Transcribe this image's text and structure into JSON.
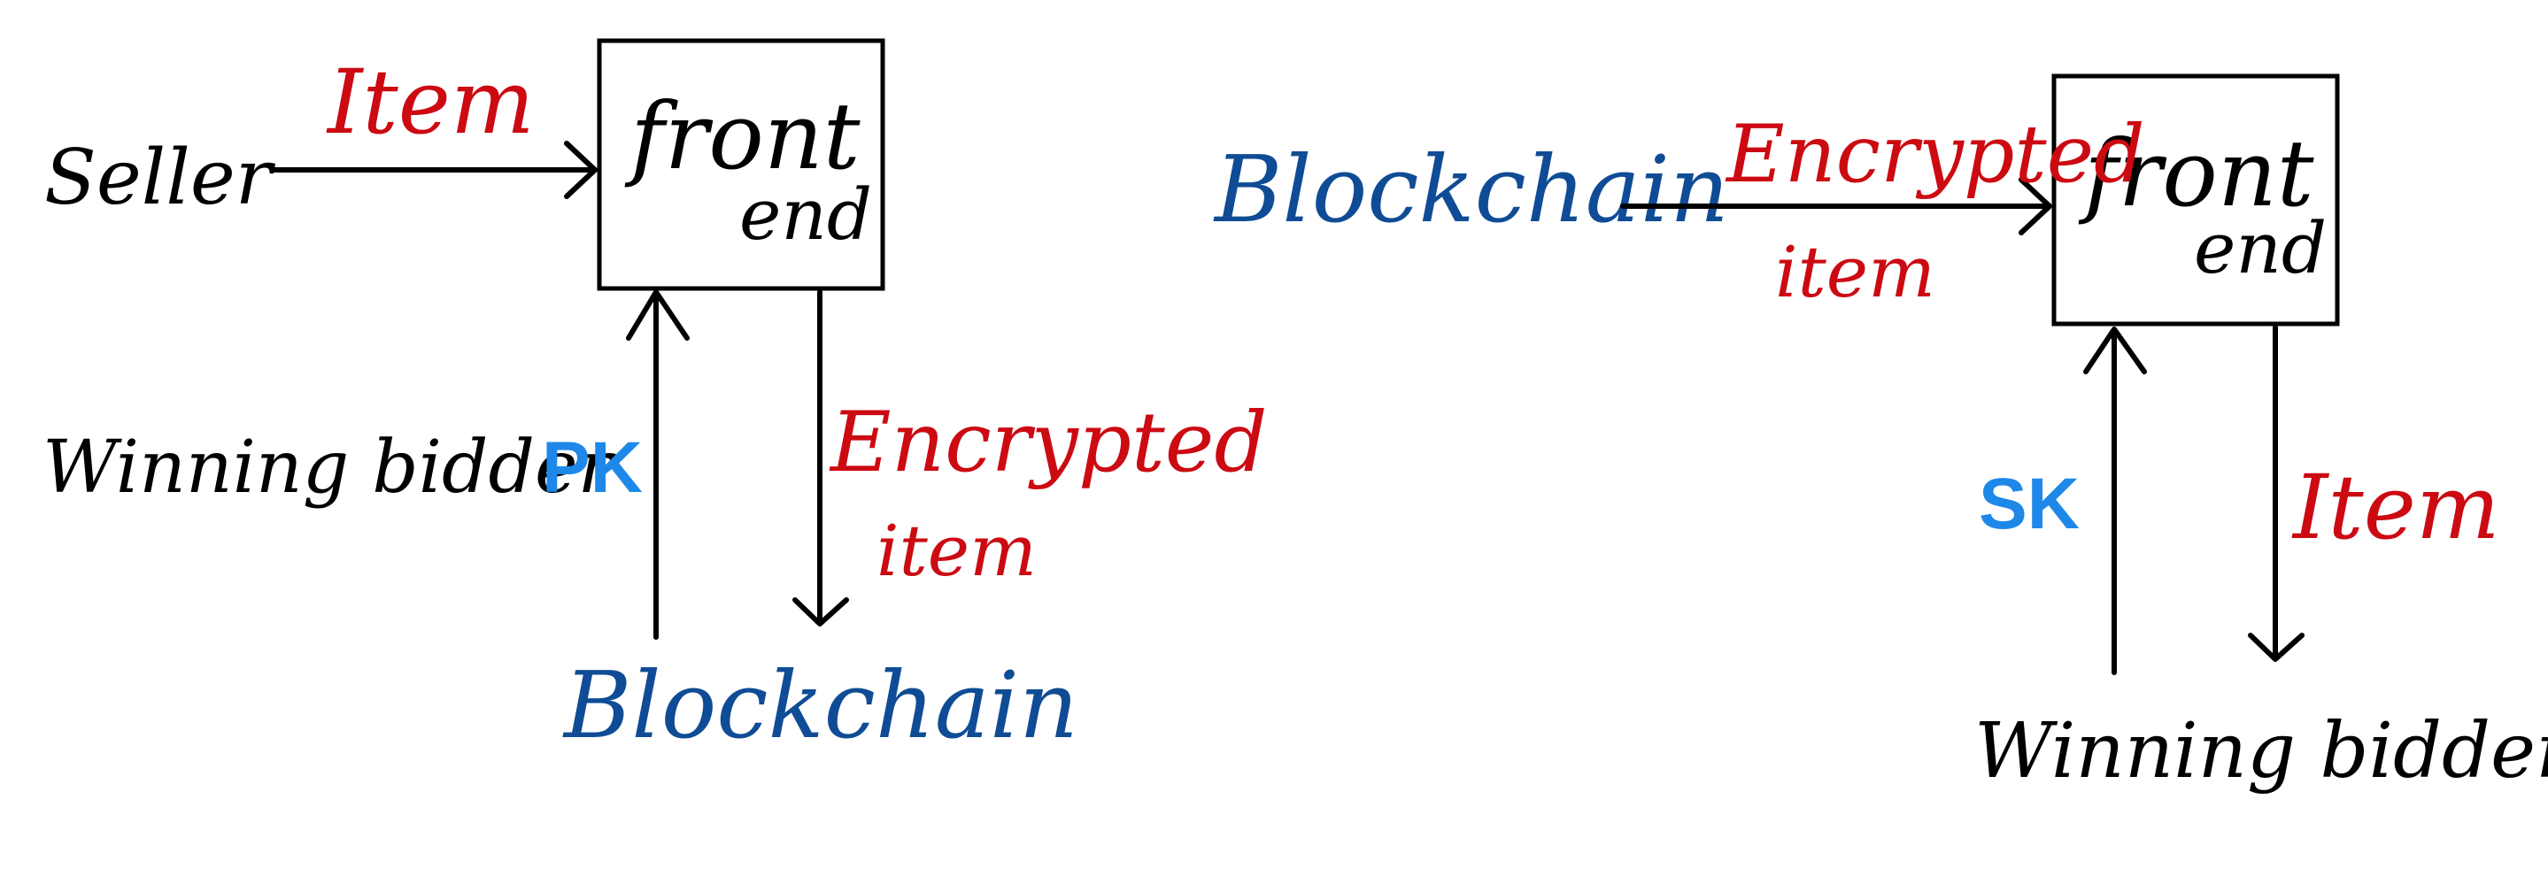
{
  "colors": {
    "ink": "#000000",
    "item_red": "#cc0a12",
    "blockchain_blue": "#0f4c95",
    "key_blue": "#1e88e8"
  },
  "left_diagram": {
    "box_label_line1": "front",
    "box_label_line2": "end",
    "seller": "Seller",
    "item": "Item",
    "winning_bidder": "Winning bidder",
    "pk": "PK",
    "encrypted_line1": "Encrypted",
    "encrypted_line2": "item",
    "blockchain": "Blockchain"
  },
  "right_diagram": {
    "box_label_line1": "front",
    "box_label_line2": "end",
    "blockchain": "Blockchain",
    "encrypted_line1": "Encrypted",
    "encrypted_line2": "item",
    "sk": "SK",
    "item": "Item",
    "winning_bidder": "Winning bidder"
  }
}
